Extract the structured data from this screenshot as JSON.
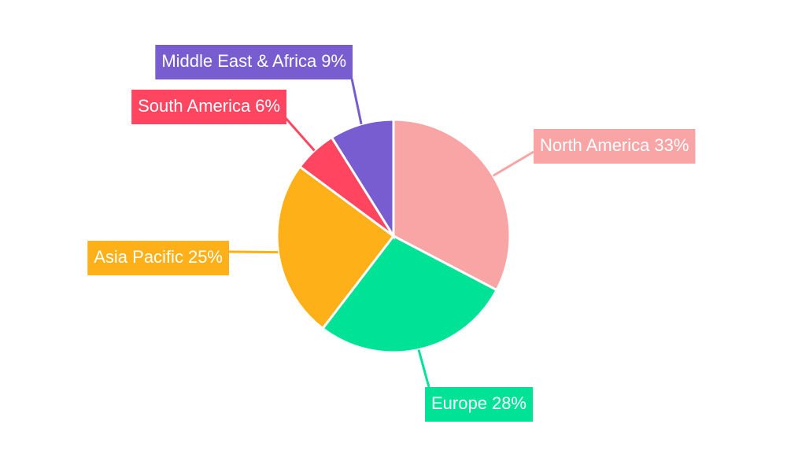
{
  "chart_data": {
    "type": "pie",
    "categories": [
      "North America",
      "Europe",
      "Asia Pacific",
      "South America",
      "Middle East & Africa"
    ],
    "values": [
      33,
      28,
      25,
      6,
      9
    ],
    "value_labels": [
      "33%",
      "28%",
      "25%",
      "6%",
      "9%"
    ],
    "colors": [
      "#f9a5a6",
      "#00e396",
      "#feb019",
      "#ff4560",
      "#775dd0"
    ]
  }
}
